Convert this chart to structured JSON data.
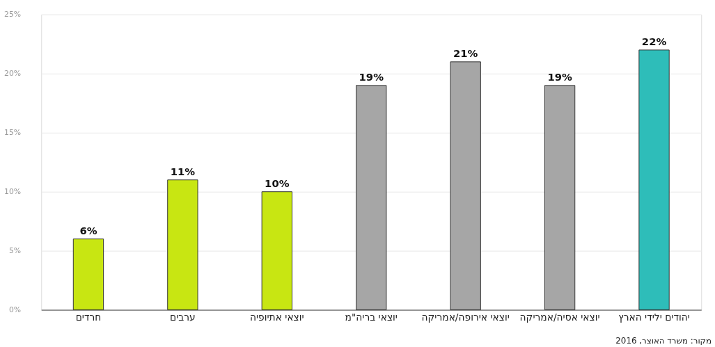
{
  "chart_data": {
    "type": "bar",
    "categories": [
      "חרדים",
      "ערבים",
      "יוצאי אתיופיה",
      "יוצאי בריה\"מ",
      "יוצאי אירופה/אמריקה",
      "יוצאי אסיה/אמריקה",
      "יהודים ילידי הארץ"
    ],
    "values": [
      6,
      11,
      10,
      19,
      21,
      19,
      22
    ],
    "colors": [
      "#c8e612",
      "#c8e612",
      "#c8e612",
      "#a6a6a6",
      "#a6a6a6",
      "#a6a6a6",
      "#2ebdb9"
    ],
    "value_labels": [
      "6%",
      "11%",
      "10%",
      "19%",
      "21%",
      "19%",
      "22%"
    ],
    "ylim": [
      0,
      25
    ],
    "yticks": [
      {
        "value": 0,
        "label": "0%"
      },
      {
        "value": 5,
        "label": "5%"
      },
      {
        "value": 10,
        "label": "10%"
      },
      {
        "value": 15,
        "label": "15%"
      },
      {
        "value": 20,
        "label": "20%"
      },
      {
        "value": 25,
        "label": "25%"
      }
    ],
    "grid": "y",
    "annotations": [
      "מקור: משרד האוצר, 2016"
    ]
  }
}
